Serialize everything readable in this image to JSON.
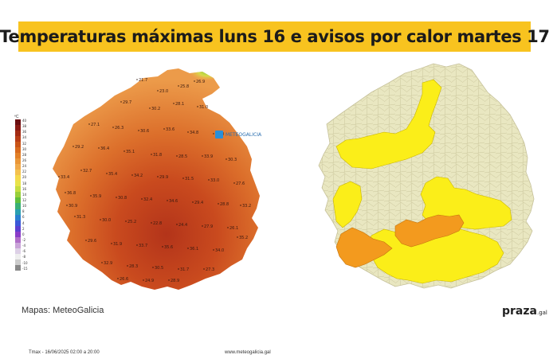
{
  "title": "Temperaturas máximas luns 16 e avisos por calor martes 17",
  "left_map": {
    "logo_text": "METEOGALICIA",
    "unit": "ºC",
    "scale": {
      "labels": [
        "40",
        "38",
        "36",
        "34",
        "32",
        "30",
        "28",
        "26",
        "24",
        "22",
        "20",
        "18",
        "16",
        "14",
        "12",
        "10",
        "8",
        "6",
        "4",
        "2",
        "0",
        "-2",
        "-4",
        "-6",
        "-8",
        "-10",
        "-15"
      ],
      "colors": [
        "#6b0f12",
        "#8a1a14",
        "#a32b14",
        "#b83d16",
        "#c95418",
        "#d86a1d",
        "#e28028",
        "#ea9637",
        "#f0aa4a",
        "#f4c14d",
        "#f5d94a",
        "#e8e34a",
        "#c5dd3f",
        "#98cf3a",
        "#5fbf3c",
        "#39b075",
        "#2aa0b0",
        "#2a7fd0",
        "#3a58d8",
        "#5c3fd0",
        "#8a3cc8",
        "#b06ec8",
        "#c9a4d8",
        "#ddd0e6",
        "#eeeeee",
        "#cccccc",
        "#888888"
      ]
    },
    "temperature_labels": [
      "21.7",
      "23.0",
      "25.8",
      "26.9",
      "29.7",
      "30.2",
      "28.1",
      "31.0",
      "27.1",
      "26.3",
      "30.6",
      "33.6",
      "34.8",
      "32.0",
      "29.2",
      "36.4",
      "35.1",
      "31.8",
      "28.5",
      "33.9",
      "30.3",
      "32.7",
      "35.4",
      "34.2",
      "29.9",
      "31.5",
      "33.0",
      "27.6",
      "36.8",
      "35.9",
      "30.8",
      "32.4",
      "34.6",
      "29.4",
      "28.8",
      "33.2",
      "31.3",
      "30.0",
      "25.2",
      "22.8",
      "24.4",
      "27.9",
      "26.1",
      "29.6",
      "31.9",
      "33.7",
      "35.6",
      "36.1",
      "34.0",
      "32.9",
      "28.3",
      "30.5",
      "31.7",
      "27.3",
      "26.6",
      "24.9",
      "28.9",
      "30.9",
      "33.4",
      "35.2"
    ],
    "footer_left": "Tmax - 16/06/2025 02:00 a 20:00",
    "footer_right": "www.meteogalicia.gal"
  },
  "right_map": {
    "legend_colors": {
      "none": "#e9e7c1",
      "yellow": "#fbee19",
      "orange": "#f39a1e"
    }
  },
  "credit": "Mapas: MeteoGalicia",
  "brand": {
    "name": "praza",
    "suffix": ".gal"
  }
}
